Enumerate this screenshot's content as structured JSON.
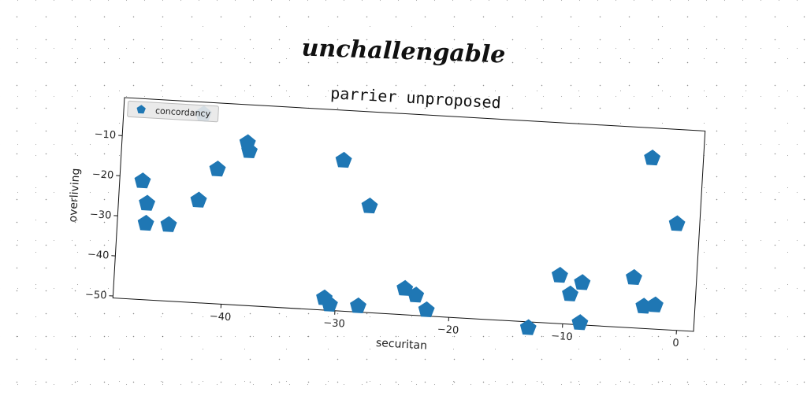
{
  "banner": {
    "text": "unchallengable"
  },
  "chart_data": {
    "type": "scatter",
    "title": "parrier unproposed",
    "xlabel": "securitan",
    "ylabel": "overliving",
    "xlim": [
      -49.5,
      1.5
    ],
    "ylim": [
      -50.5,
      -0.5
    ],
    "xticks": [
      -40,
      -30,
      -20,
      -10,
      0
    ],
    "yticks": [
      -10,
      -20,
      -30,
      -40,
      -50
    ],
    "grid": false,
    "legend_position": "top-left",
    "marker": "pentagon",
    "color": "#1f77b4",
    "series": [
      {
        "name": "concordancy",
        "points": [
          [
            -42.5,
            -3.5
          ],
          [
            -38.5,
            -10
          ],
          [
            -38.3,
            -12
          ],
          [
            -41,
            -17
          ],
          [
            -42.5,
            -25
          ],
          [
            -47.5,
            -21
          ],
          [
            -47,
            -26.5
          ],
          [
            -47,
            -31.5
          ],
          [
            -45,
            -31.5
          ],
          [
            -30,
            -13
          ],
          [
            -27.5,
            -24
          ],
          [
            -3,
            -8
          ],
          [
            -0.5,
            -24
          ],
          [
            -10.5,
            -38.5
          ],
          [
            -9.5,
            -43
          ],
          [
            -8.5,
            -40
          ],
          [
            -4,
            -38
          ],
          [
            -3,
            -45
          ],
          [
            -2,
            -44.5
          ],
          [
            -8.5,
            -50
          ],
          [
            -13,
            -52
          ],
          [
            -22,
            -49
          ],
          [
            -24,
            -44
          ],
          [
            -23,
            -45.5
          ],
          [
            -28,
            -49
          ],
          [
            -30.5,
            -49
          ],
          [
            -31,
            -47.5
          ]
        ]
      }
    ]
  }
}
